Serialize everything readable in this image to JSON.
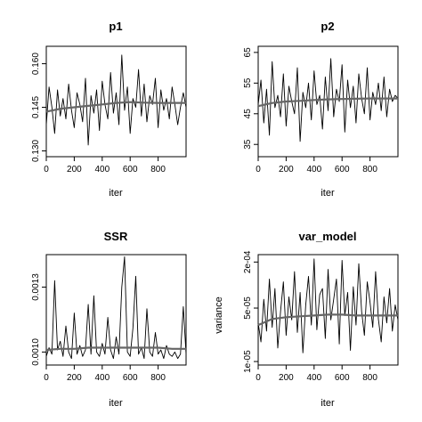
{
  "chart_data": [
    {
      "type": "line",
      "title": "p1",
      "xlabel": "iter",
      "ylabel": "",
      "xlim": [
        0,
        1000
      ],
      "ylim": [
        0.128,
        0.166
      ],
      "y_scale": "linear",
      "xticks": [
        0,
        200,
        400,
        600,
        800
      ],
      "yticks": [
        {
          "value": 0.13,
          "label": "0.130"
        },
        {
          "value": 0.145,
          "label": "0.145"
        },
        {
          "value": 0.16,
          "label": "0.160"
        }
      ],
      "grid": false,
      "series": [
        {
          "style": "trace",
          "x": [
            0,
            20,
            40,
            60,
            80,
            100,
            120,
            140,
            160,
            180,
            200,
            220,
            240,
            260,
            280,
            300,
            320,
            340,
            360,
            380,
            400,
            420,
            440,
            460,
            480,
            500,
            520,
            540,
            560,
            580,
            600,
            620,
            640,
            660,
            680,
            700,
            720,
            740,
            760,
            780,
            800,
            820,
            840,
            860,
            880,
            900,
            920,
            940,
            960,
            980,
            1000
          ],
          "y": [
            0.139,
            0.152,
            0.145,
            0.136,
            0.151,
            0.142,
            0.148,
            0.141,
            0.153,
            0.144,
            0.138,
            0.15,
            0.146,
            0.14,
            0.155,
            0.132,
            0.149,
            0.143,
            0.151,
            0.137,
            0.154,
            0.146,
            0.141,
            0.157,
            0.143,
            0.15,
            0.139,
            0.163,
            0.144,
            0.152,
            0.136,
            0.148,
            0.145,
            0.158,
            0.142,
            0.153,
            0.14,
            0.149,
            0.146,
            0.155,
            0.138,
            0.151,
            0.144,
            0.148,
            0.141,
            0.152,
            0.146,
            0.139,
            0.145,
            0.15,
            0.145
          ]
        },
        {
          "style": "running-mean",
          "x": [
            0,
            100,
            200,
            300,
            400,
            500,
            600,
            700,
            800,
            900,
            1000
          ],
          "y": [
            0.1435,
            0.1445,
            0.145,
            0.1455,
            0.146,
            0.1465,
            0.1468,
            0.1466,
            0.1465,
            0.1465,
            0.1465
          ]
        }
      ]
    },
    {
      "type": "line",
      "title": "p2",
      "xlabel": "iter",
      "ylabel": "",
      "xlim": [
        0,
        1000
      ],
      "ylim": [
        31,
        67
      ],
      "y_scale": "linear",
      "xticks": [
        0,
        200,
        400,
        600,
        800
      ],
      "yticks": [
        {
          "value": 35,
          "label": "35"
        },
        {
          "value": 45,
          "label": "45"
        },
        {
          "value": 55,
          "label": "55"
        },
        {
          "value": 65,
          "label": "65"
        }
      ],
      "grid": false,
      "series": [
        {
          "style": "trace",
          "x": [
            0,
            20,
            40,
            60,
            80,
            100,
            120,
            140,
            160,
            180,
            200,
            220,
            240,
            260,
            280,
            300,
            320,
            340,
            360,
            380,
            400,
            420,
            440,
            460,
            480,
            500,
            520,
            540,
            560,
            580,
            600,
            620,
            640,
            660,
            680,
            700,
            720,
            740,
            760,
            780,
            800,
            820,
            840,
            860,
            880,
            900,
            920,
            940,
            960,
            980,
            1000
          ],
          "y": [
            48,
            56,
            42,
            53,
            38,
            62,
            47,
            51,
            44,
            58,
            41,
            54,
            49,
            45,
            60,
            36,
            52,
            47,
            55,
            43,
            59,
            48,
            51,
            40,
            57,
            46,
            63,
            44,
            53,
            49,
            61,
            39,
            56,
            47,
            54,
            42,
            58,
            50,
            45,
            60,
            43,
            52,
            48,
            55,
            46,
            57,
            44,
            53,
            49,
            51,
            50
          ]
        },
        {
          "style": "running-mean",
          "x": [
            0,
            100,
            200,
            300,
            400,
            500,
            600,
            700,
            800,
            900,
            1000
          ],
          "y": [
            47.5,
            48.5,
            49,
            49.2,
            49.5,
            49.7,
            49.8,
            49.9,
            50,
            50,
            50
          ]
        }
      ]
    },
    {
      "type": "line",
      "title": "SSR",
      "xlabel": "iter",
      "ylabel": "",
      "xlim": [
        0,
        1000
      ],
      "ylim": [
        0.00094,
        0.00145
      ],
      "y_scale": "linear",
      "xticks": [
        0,
        200,
        400,
        600,
        800
      ],
      "yticks": [
        {
          "value": 0.001,
          "label": "0.0010"
        },
        {
          "value": 0.0013,
          "label": "0.0013"
        }
      ],
      "grid": false,
      "series": [
        {
          "style": "trace",
          "x": [
            0,
            20,
            40,
            60,
            80,
            100,
            120,
            140,
            160,
            180,
            200,
            220,
            240,
            260,
            280,
            300,
            320,
            340,
            360,
            380,
            400,
            420,
            440,
            460,
            480,
            500,
            520,
            540,
            560,
            580,
            600,
            620,
            640,
            660,
            680,
            700,
            720,
            740,
            760,
            780,
            800,
            820,
            840,
            860,
            880,
            900,
            920,
            940,
            960,
            980,
            1000
          ],
          "y": [
            0.00098,
            0.00102,
            0.00099,
            0.00133,
            0.00101,
            0.00105,
            0.00098,
            0.00112,
            0.001,
            0.00097,
            0.00118,
            0.00099,
            0.00103,
            0.00098,
            0.00101,
            0.00122,
            0.00099,
            0.00126,
            0.001,
            0.00098,
            0.00104,
            0.00099,
            0.00116,
            0.00101,
            0.00097,
            0.00107,
            0.00099,
            0.0013,
            0.00144,
            0.001,
            0.00098,
            0.00111,
            0.00135,
            0.00099,
            0.00102,
            0.00097,
            0.0012,
            0.001,
            0.00098,
            0.00109,
            0.00099,
            0.00101,
            0.00097,
            0.00103,
            0.00099,
            0.00098,
            0.001,
            0.00097,
            0.00099,
            0.00121,
            0.00099
          ]
        },
        {
          "style": "running-mean",
          "x": [
            0,
            100,
            200,
            300,
            400,
            500,
            600,
            700,
            800,
            900,
            1000
          ],
          "y": [
            0.00101,
            0.001015,
            0.001015,
            0.00102,
            0.00102,
            0.00102,
            0.00102,
            0.00102,
            0.00102,
            0.001015,
            0.001015
          ]
        }
      ]
    },
    {
      "type": "line",
      "title": "var_model",
      "xlabel": "iter",
      "ylabel": "variance",
      "xlim": [
        0,
        1000
      ],
      "ylim": [
        9e-06,
        0.00025
      ],
      "y_scale": "log",
      "xticks": [
        0,
        200,
        400,
        600,
        800
      ],
      "yticks": [
        {
          "value": 1e-05,
          "label": "1e-05"
        },
        {
          "value": 5e-05,
          "label": "5e-05"
        },
        {
          "value": 0.0002,
          "label": "2e-04"
        }
      ],
      "grid": false,
      "series": [
        {
          "style": "trace",
          "x": [
            0,
            20,
            40,
            60,
            80,
            100,
            120,
            140,
            160,
            180,
            200,
            220,
            240,
            260,
            280,
            300,
            320,
            340,
            360,
            380,
            400,
            420,
            440,
            460,
            480,
            500,
            520,
            540,
            560,
            580,
            600,
            620,
            640,
            660,
            680,
            700,
            720,
            740,
            760,
            780,
            800,
            820,
            840,
            860,
            880,
            900,
            920,
            940,
            960,
            980,
            1000
          ],
          "y": [
            3.2e-05,
            1.8e-05,
            6.5e-05,
            2.5e-05,
            0.00012,
            2.8e-05,
            9e-05,
            1.5e-05,
            4.5e-05,
            0.00011,
            2.2e-05,
            7e-05,
            3.5e-05,
            0.00015,
            2.4e-05,
            8e-05,
            1.3e-05,
            5.5e-05,
            0.00013,
            3e-05,
            0.00022,
            2.6e-05,
            7.5e-05,
            9e-05,
            2e-05,
            0.00016,
            3.5e-05,
            6.5e-05,
            0.00012,
            1.7e-05,
            0.00021,
            4e-05,
            8e-05,
            1.4e-05,
            9.5e-05,
            3e-05,
            0.00019,
            4.5e-05,
            2.2e-05,
            0.00011,
            6e-05,
            2.8e-05,
            0.00015,
            3.6e-05,
            1.8e-05,
            7e-05,
            3.2e-05,
            9e-05,
            2.5e-05,
            5.5e-05,
            3.5e-05
          ]
        },
        {
          "style": "running-mean",
          "x": [
            0,
            100,
            200,
            300,
            400,
            500,
            600,
            700,
            800,
            900,
            1000
          ],
          "y": [
            3e-05,
            3.6e-05,
            3.8e-05,
            3.9e-05,
            4e-05,
            4.1e-05,
            4.1e-05,
            4e-05,
            4e-05,
            4e-05,
            4e-05
          ]
        }
      ]
    }
  ]
}
